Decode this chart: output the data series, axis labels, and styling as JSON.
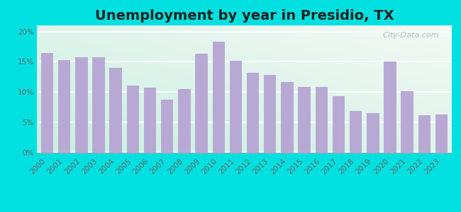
{
  "title": "Unemployment by year in Presidio, TX",
  "years": [
    2000,
    2001,
    2002,
    2003,
    2004,
    2005,
    2006,
    2007,
    2008,
    2009,
    2010,
    2011,
    2012,
    2013,
    2014,
    2015,
    2016,
    2017,
    2018,
    2019,
    2020,
    2021,
    2022,
    2023
  ],
  "values": [
    16.5,
    15.3,
    15.7,
    15.7,
    14.0,
    11.1,
    10.7,
    8.8,
    10.5,
    16.3,
    18.3,
    15.2,
    13.2,
    12.8,
    11.7,
    10.8,
    10.9,
    9.3,
    6.9,
    6.5,
    15.0,
    10.2,
    6.2,
    6.3
  ],
  "bar_color": "#b8a9d4",
  "outer_background": "#00e0e0",
  "ylim": [
    0,
    21
  ],
  "yticks": [
    0,
    5,
    10,
    15,
    20
  ],
  "ytick_labels": [
    "0%",
    "5%",
    "10%",
    "15%",
    "20%"
  ],
  "watermark_text": "City-Data.com",
  "title_fontsize": 14,
  "tick_fontsize": 7.5
}
